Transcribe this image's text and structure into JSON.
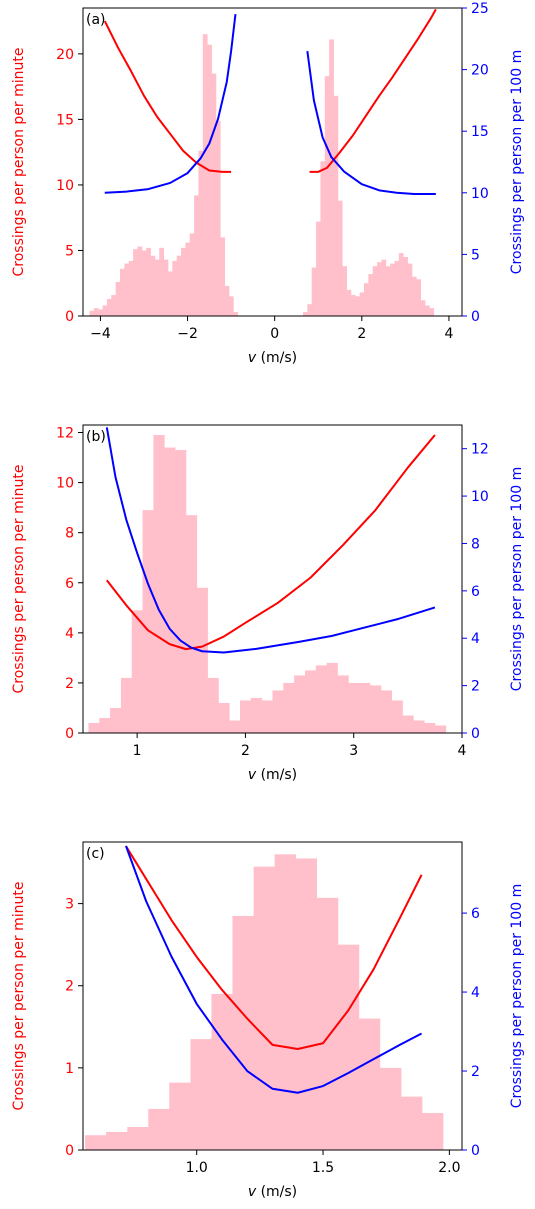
{
  "colors": {
    "red": "#ff0000",
    "blue": "#0000ff",
    "hist": "#ffc0cb",
    "axis": "#000000"
  },
  "chart_data": [
    {
      "type": "line",
      "panel_label": "(a)",
      "xlabel_var": "v",
      "xlabel_unit": " (m/s)",
      "ylabel_left": "Crossings per person per minute",
      "ylabel_right": "Crossings per person per 100 m",
      "xlim": [
        -4.4,
        4.3
      ],
      "ylim_left": [
        0,
        23.5
      ],
      "ylim_right": [
        0,
        25
      ],
      "xticks": [
        -4,
        -2,
        0,
        2,
        4
      ],
      "xtick_labels": [
        "−4",
        "−2",
        "0",
        "2",
        "4"
      ],
      "yticks_left": [
        0,
        5,
        10,
        15,
        20
      ],
      "yticks_right": [
        0,
        5,
        10,
        15,
        20,
        25
      ],
      "histogram": {
        "bin_width": 0.1,
        "x": [
          -4.2,
          -4.1,
          -4.0,
          -3.9,
          -3.8,
          -3.7,
          -3.6,
          -3.5,
          -3.4,
          -3.3,
          -3.2,
          -3.1,
          -3.0,
          -2.9,
          -2.8,
          -2.7,
          -2.6,
          -2.5,
          -2.4,
          -2.3,
          -2.2,
          -2.1,
          -2.0,
          -1.9,
          -1.8,
          -1.7,
          -1.6,
          -1.5,
          -1.4,
          -1.3,
          -1.2,
          -1.1,
          -1.0,
          -0.9,
          0.7,
          0.8,
          0.9,
          1.0,
          1.1,
          1.2,
          1.3,
          1.4,
          1.5,
          1.6,
          1.7,
          1.8,
          1.9,
          2.0,
          2.1,
          2.2,
          2.3,
          2.4,
          2.5,
          2.6,
          2.7,
          2.8,
          2.9,
          3.0,
          3.1,
          3.2,
          3.3,
          3.4,
          3.5,
          3.6
        ],
        "values": [
          0.4,
          0.6,
          0.5,
          0.8,
          1.3,
          1.6,
          2.6,
          3.6,
          4.0,
          4.2,
          5.1,
          5.3,
          5.0,
          5.2,
          4.6,
          4.3,
          5.2,
          4.3,
          3.4,
          4.2,
          4.6,
          5.2,
          5.6,
          6.3,
          9.2,
          12.6,
          21.5,
          20.7,
          18.5,
          14.9,
          6.0,
          2.3,
          1.5,
          0.3,
          0.3,
          0.9,
          3.7,
          7.2,
          11.8,
          18.3,
          21.1,
          16.8,
          8.8,
          3.8,
          2.0,
          1.6,
          1.5,
          1.8,
          2.5,
          3.2,
          3.8,
          4.1,
          4.3,
          3.8,
          4.0,
          4.2,
          4.8,
          4.5,
          4.0,
          3.0,
          2.8,
          1.2,
          0.8,
          0.6
        ]
      },
      "series": [
        {
          "color": "red",
          "axis": "left",
          "x": [
            -3.9,
            -3.6,
            -3.3,
            -3.0,
            -2.7,
            -2.4,
            -2.1,
            -1.8,
            -1.5,
            -1.2,
            -1.0
          ],
          "y": [
            22.5,
            20.5,
            18.7,
            16.8,
            15.2,
            13.9,
            12.6,
            11.7,
            11.1,
            11.0,
            11.0
          ]
        },
        {
          "color": "blue",
          "axis": "right",
          "x": [
            -3.9,
            -3.4,
            -2.9,
            -2.4,
            -2.0,
            -1.7,
            -1.5,
            -1.3,
            -1.1,
            -1.0,
            -0.9
          ],
          "y": [
            10.0,
            10.1,
            10.3,
            10.8,
            11.6,
            12.8,
            14.0,
            16.0,
            19.0,
            21.5,
            24.5
          ]
        },
        {
          "color": "red",
          "axis": "left",
          "x": [
            0.8,
            1.0,
            1.2,
            1.5,
            1.8,
            2.1,
            2.4,
            2.7,
            3.0,
            3.3,
            3.6,
            3.7
          ],
          "y": [
            11.0,
            11.0,
            11.3,
            12.5,
            13.8,
            15.3,
            16.8,
            18.2,
            19.7,
            21.2,
            22.8,
            23.4
          ]
        },
        {
          "color": "blue",
          "axis": "right",
          "x": [
            0.75,
            0.9,
            1.1,
            1.3,
            1.6,
            2.0,
            2.4,
            2.8,
            3.2,
            3.7
          ],
          "y": [
            21.5,
            17.5,
            14.5,
            12.9,
            11.7,
            10.7,
            10.2,
            10.0,
            9.9,
            9.9
          ]
        }
      ]
    },
    {
      "type": "line",
      "panel_label": "(b)",
      "xlabel_var": "v",
      "xlabel_unit": " (m/s)",
      "ylabel_left": "Crossings per person per minute",
      "ylabel_right": "Crossings per person per 100 m",
      "xlim": [
        0.5,
        4.0
      ],
      "ylim_left": [
        0,
        12.3
      ],
      "ylim_right": [
        0,
        13
      ],
      "xticks": [
        1,
        2,
        3,
        4
      ],
      "xtick_labels": [
        "1",
        "2",
        "3",
        "4"
      ],
      "yticks_left": [
        0,
        2,
        4,
        6,
        8,
        10,
        12
      ],
      "yticks_right": [
        0,
        2,
        4,
        6,
        8,
        10,
        12
      ],
      "histogram": {
        "bin_width": 0.1,
        "x": [
          0.6,
          0.7,
          0.8,
          0.9,
          1.0,
          1.1,
          1.2,
          1.3,
          1.4,
          1.5,
          1.6,
          1.7,
          1.8,
          1.9,
          2.0,
          2.1,
          2.2,
          2.3,
          2.4,
          2.5,
          2.6,
          2.7,
          2.8,
          2.9,
          3.0,
          3.1,
          3.2,
          3.3,
          3.4,
          3.5,
          3.6,
          3.7,
          3.8
        ],
        "values": [
          0.4,
          0.6,
          1.0,
          2.2,
          4.9,
          8.9,
          11.9,
          11.4,
          11.3,
          8.7,
          5.8,
          2.2,
          1.2,
          0.5,
          1.3,
          1.4,
          1.3,
          1.7,
          2.0,
          2.3,
          2.5,
          2.7,
          2.8,
          2.3,
          2.0,
          2.0,
          1.9,
          1.7,
          1.3,
          0.7,
          0.5,
          0.4,
          0.3
        ]
      },
      "series": [
        {
          "color": "red",
          "axis": "left",
          "x": [
            0.72,
            0.9,
            1.1,
            1.3,
            1.45,
            1.6,
            1.8,
            2.0,
            2.3,
            2.6,
            2.9,
            3.2,
            3.5,
            3.75
          ],
          "y": [
            6.1,
            5.1,
            4.1,
            3.55,
            3.35,
            3.45,
            3.85,
            4.4,
            5.2,
            6.2,
            7.5,
            8.9,
            10.6,
            11.9
          ]
        },
        {
          "color": "blue",
          "axis": "right",
          "x": [
            0.72,
            0.8,
            0.9,
            1.0,
            1.1,
            1.2,
            1.3,
            1.4,
            1.5,
            1.6,
            1.8,
            2.1,
            2.5,
            2.8,
            3.1,
            3.4,
            3.75
          ],
          "y": [
            12.9,
            10.8,
            9.0,
            7.6,
            6.3,
            5.2,
            4.4,
            3.9,
            3.6,
            3.45,
            3.4,
            3.55,
            3.85,
            4.1,
            4.45,
            4.8,
            5.3
          ]
        }
      ]
    },
    {
      "type": "line",
      "panel_label": "(c)",
      "xlabel_var": "v",
      "xlabel_unit": " (m/s)",
      "ylabel_left": "Crossings per person per minute",
      "ylabel_right": "Crossings per person per 100 m",
      "xlim": [
        0.55,
        2.05
      ],
      "ylim_left": [
        0,
        3.75
      ],
      "ylim_right": [
        0,
        7.8
      ],
      "xticks": [
        1.0,
        1.5,
        2.0
      ],
      "xtick_labels": [
        "1.0",
        "1.5",
        "2.0"
      ],
      "yticks_left": [
        0,
        1,
        2,
        3
      ],
      "yticks_right": [
        0,
        2,
        4,
        6
      ],
      "histogram": {
        "bin_width": 0.0833,
        "x": [
          0.6,
          0.683,
          0.767,
          0.85,
          0.933,
          1.017,
          1.1,
          1.183,
          1.267,
          1.35,
          1.433,
          1.517,
          1.6,
          1.683,
          1.767,
          1.85,
          1.933
        ],
        "values": [
          0.18,
          0.22,
          0.28,
          0.5,
          0.82,
          1.35,
          1.9,
          2.85,
          3.45,
          3.6,
          3.55,
          3.07,
          2.5,
          1.6,
          1.0,
          0.65,
          0.45
        ]
      },
      "series": [
        {
          "color": "red",
          "axis": "left",
          "x": [
            0.72,
            0.8,
            0.9,
            1.0,
            1.1,
            1.2,
            1.3,
            1.4,
            1.5,
            1.6,
            1.7,
            1.8,
            1.89
          ],
          "y": [
            3.7,
            3.3,
            2.8,
            2.35,
            1.95,
            1.6,
            1.28,
            1.23,
            1.3,
            1.7,
            2.2,
            2.8,
            3.35
          ]
        },
        {
          "color": "blue",
          "axis": "right",
          "x": [
            0.72,
            0.8,
            0.9,
            1.0,
            1.1,
            1.2,
            1.3,
            1.4,
            1.5,
            1.6,
            1.7,
            1.8,
            1.89
          ],
          "y": [
            7.7,
            6.3,
            4.9,
            3.7,
            2.8,
            2.0,
            1.55,
            1.45,
            1.62,
            1.95,
            2.3,
            2.65,
            2.95
          ]
        }
      ]
    }
  ]
}
